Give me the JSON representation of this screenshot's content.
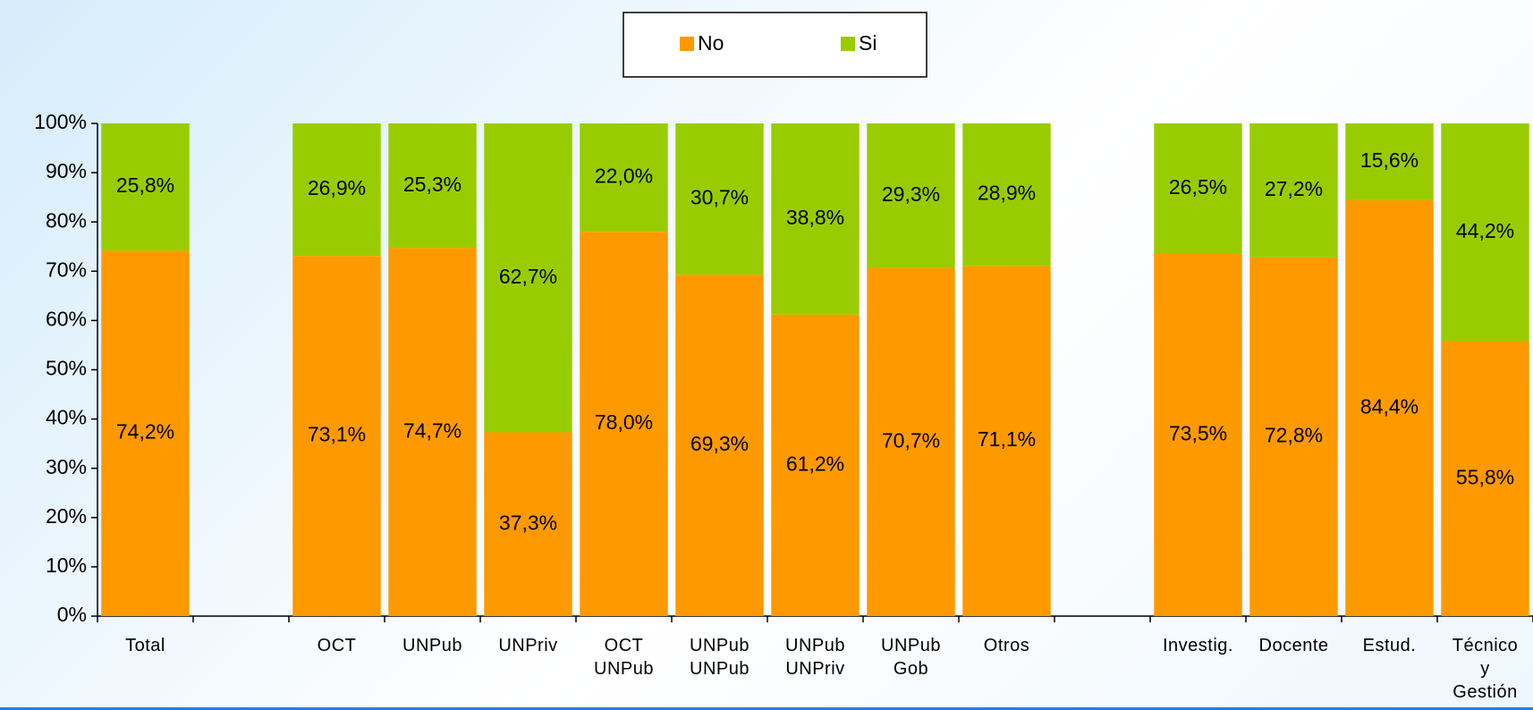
{
  "chart_data": {
    "type": "stacked_bar",
    "categories": [
      "Total",
      null,
      "OCT",
      "UNPub",
      "UNPriv",
      "OCT\nUNPub",
      "UNPub\nUNPub",
      "UNPub\nUNPriv",
      "UNPub\nGob",
      "Otros",
      null,
      "Investig.",
      "Docente",
      "Estud.",
      "Técnico\ny\nGestión"
    ],
    "series": [
      {
        "name": "No",
        "color": "#ff9900",
        "values": [
          74.2,
          null,
          73.1,
          74.7,
          37.3,
          78.0,
          69.3,
          61.2,
          70.7,
          71.1,
          null,
          73.5,
          72.8,
          84.4,
          55.8
        ],
        "value_labels": [
          "74,2%",
          null,
          "73,1%",
          "74,7%",
          "37,3%",
          "78,0%",
          "69,3%",
          "61,2%",
          "70,7%",
          "71,1%",
          null,
          "73,5%",
          "72,8%",
          "84,4%",
          "55,8%"
        ]
      },
      {
        "name": "Si",
        "color": "#99cc00",
        "values": [
          25.8,
          null,
          26.9,
          25.3,
          62.7,
          22.0,
          30.7,
          38.8,
          29.3,
          28.9,
          null,
          26.5,
          27.2,
          15.6,
          44.2
        ],
        "value_labels": [
          "25,8%",
          null,
          "26,9%",
          "25,3%",
          "62,7%",
          "22,0%",
          "30,7%",
          "38,8%",
          "29,3%",
          "28,9%",
          null,
          "26,5%",
          "27,2%",
          "15,6%",
          "44,2%"
        ]
      }
    ],
    "ylim": [
      0,
      100
    ],
    "yticks": [
      {
        "value": 0,
        "label": "0%"
      },
      {
        "value": 10,
        "label": "10%"
      },
      {
        "value": 20,
        "label": "20%"
      },
      {
        "value": 30,
        "label": "30%"
      },
      {
        "value": 40,
        "label": "40%"
      },
      {
        "value": 50,
        "label": "50%"
      },
      {
        "value": 60,
        "label": "60%"
      },
      {
        "value": 70,
        "label": "70%"
      },
      {
        "value": 80,
        "label": "80%"
      },
      {
        "value": 90,
        "label": "90%"
      },
      {
        "value": 100,
        "label": "100%"
      }
    ],
    "legend": "top"
  }
}
